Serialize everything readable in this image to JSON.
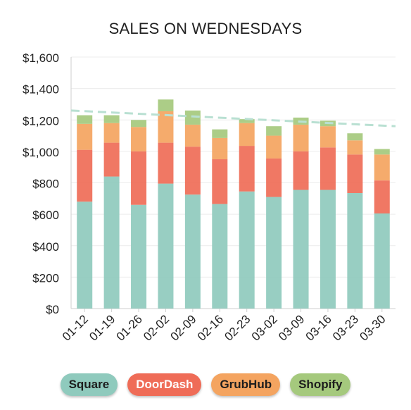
{
  "chart_data": {
    "type": "bar",
    "stacked": true,
    "title": "SALES ON WEDNESDAYS",
    "categories": [
      "01-12",
      "01-19",
      "01-26",
      "02-02",
      "02-09",
      "02-16",
      "02-23",
      "03-02",
      "03-09",
      "03-16",
      "03-23",
      "03-30"
    ],
    "series": [
      {
        "name": "Square",
        "color": "#8fcabd",
        "values": [
          680,
          840,
          660,
          795,
          725,
          665,
          745,
          710,
          755,
          755,
          735,
          605
        ]
      },
      {
        "name": "DoorDash",
        "color": "#ef6c57",
        "values": [
          330,
          215,
          340,
          260,
          305,
          285,
          290,
          245,
          245,
          270,
          245,
          210
        ]
      },
      {
        "name": "GrubHub",
        "color": "#f4a460",
        "values": [
          165,
          125,
          155,
          200,
          140,
          135,
          145,
          145,
          170,
          135,
          90,
          165
        ]
      },
      {
        "name": "Shopify",
        "color": "#a5c97d",
        "values": [
          55,
          50,
          45,
          75,
          90,
          55,
          25,
          60,
          45,
          35,
          45,
          35
        ]
      }
    ],
    "trendline": {
      "style": "dashed",
      "color": "#b9e0d2",
      "start": 1260,
      "end": 1160
    },
    "ylim": [
      0,
      1600
    ],
    "yticks": [
      "$0",
      "$200",
      "$400",
      "$600",
      "$800",
      "$1,000",
      "$1,200",
      "$1,400",
      "$1,600"
    ],
    "ytick_values": [
      0,
      200,
      400,
      600,
      800,
      1000,
      1200,
      1400,
      1600
    ],
    "grid": true,
    "legend_position": "bottom"
  }
}
